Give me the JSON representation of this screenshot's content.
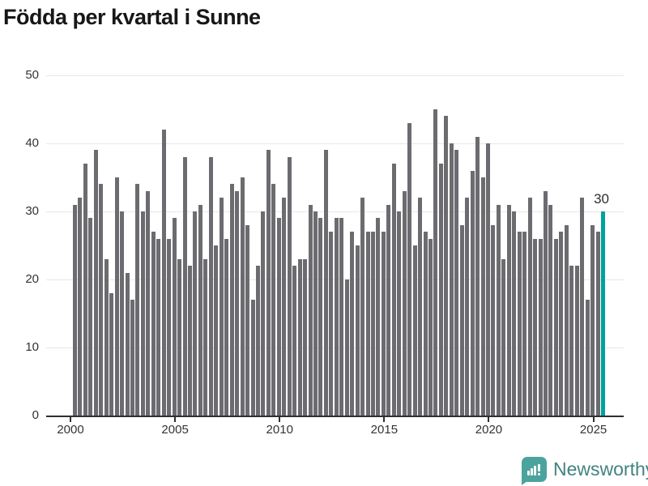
{
  "title": "Födda per kvartal i Sunne",
  "branding": {
    "name": "Newsworthy",
    "icon": "newsworthy-speech-bubble-chart-icon"
  },
  "annotation": {
    "text": "30"
  },
  "colors": {
    "bar": "#6c6c70",
    "highlight": "#00a29b",
    "grid": "#e8e8e8",
    "axis": "#2f2f2f",
    "title_text": "#171717",
    "tick_text": "#333333",
    "logo_icon": "#4aa49d",
    "logo_text": "#41837f"
  },
  "chart_data": {
    "type": "bar",
    "title": "Födda per kvartal i Sunne",
    "xlabel": "",
    "ylabel": "",
    "x_domain": {
      "start": "2000 Q1",
      "end": "2025 Q2",
      "interval": "quarter",
      "count": 102
    },
    "values": [
      31,
      32,
      37,
      29,
      39,
      34,
      23,
      18,
      35,
      30,
      21,
      17,
      34,
      30,
      33,
      27,
      26,
      42,
      26,
      29,
      23,
      38,
      22,
      30,
      31,
      23,
      38,
      25,
      32,
      26,
      34,
      33,
      35,
      28,
      17,
      22,
      30,
      39,
      34,
      29,
      32,
      38,
      22,
      23,
      23,
      31,
      30,
      29,
      39,
      27,
      29,
      29,
      20,
      27,
      25,
      32,
      27,
      27,
      29,
      27,
      31,
      37,
      30,
      33,
      43,
      25,
      32,
      27,
      26,
      45,
      37,
      44,
      40,
      39,
      28,
      32,
      36,
      41,
      35,
      40,
      28,
      31,
      23,
      31,
      30,
      27,
      27,
      32,
      26,
      26,
      33,
      31,
      26,
      27,
      28,
      22,
      22,
      32,
      17,
      28,
      27,
      30
    ],
    "highlight_index": 101,
    "highlight_value": 30,
    "ylim": [
      0,
      50
    ],
    "yticks": [
      0,
      10,
      20,
      30,
      40,
      50
    ],
    "xticks": [
      2000,
      2005,
      2010,
      2015,
      2020,
      2025
    ],
    "x_start_year": 2000,
    "grid": "horizontal",
    "legend": "none"
  }
}
